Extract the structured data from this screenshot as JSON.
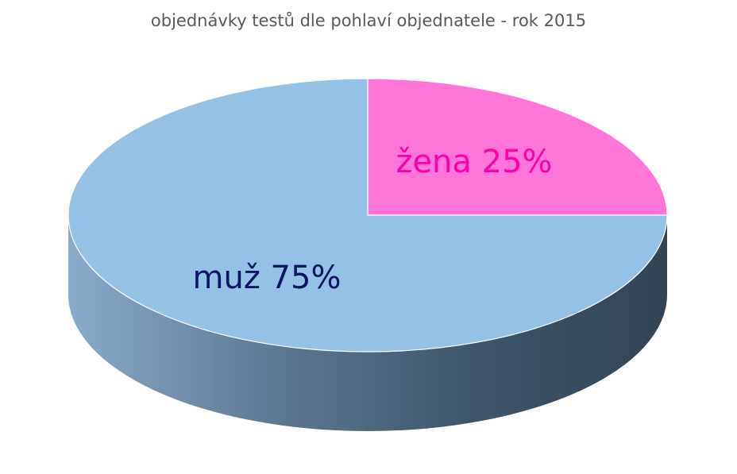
{
  "chart_data": {
    "type": "pie",
    "title": "objednávky testů dle pohlaví objednatele - rok 2015",
    "slices": [
      {
        "name": "žena",
        "value": 25,
        "label": "žena 25%",
        "color": "#ff75d8",
        "label_color": "#ff00a8"
      },
      {
        "name": "muž",
        "value": 75,
        "label": "muž 75%",
        "color": "#94c1e6",
        "label_color": "#0c1566"
      }
    ],
    "side_gradient": [
      "#8aabcb",
      "#5f7a94",
      "#3f566b",
      "#334454"
    ]
  }
}
